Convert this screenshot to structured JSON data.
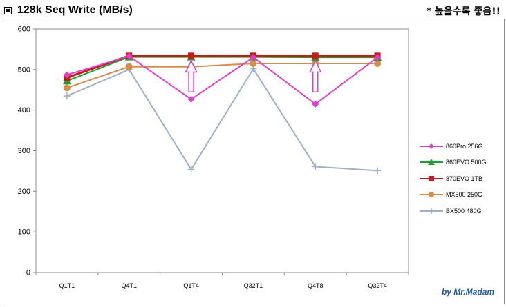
{
  "header": {
    "title": "128k Seq Write (MB/s)",
    "note": "* 높을수록 좋음!!"
  },
  "byline": "by Mr.Madam",
  "chart_data": {
    "type": "line",
    "categories": [
      "Q1T1",
      "Q4T1",
      "Q1T4",
      "Q32T1",
      "Q4T8",
      "Q32T4"
    ],
    "ylim": [
      0,
      600
    ],
    "yticks": [
      0,
      100,
      200,
      300,
      400,
      500,
      600
    ],
    "grid": false,
    "legend_position": "right",
    "series": [
      {
        "name": "860Pro 256G",
        "color": "#e040c8",
        "marker": "diamond",
        "values": [
          487,
          533,
          427,
          530,
          415,
          530
        ]
      },
      {
        "name": "860EVO 500G",
        "color": "#1e9e2e",
        "marker": "triangle",
        "values": [
          472,
          531,
          531,
          531,
          530,
          530
        ]
      },
      {
        "name": "870EVO 1TB",
        "color": "#c81818",
        "marker": "square",
        "values": [
          480,
          534,
          534,
          534,
          534,
          534
        ]
      },
      {
        "name": "MX500 250G",
        "color": "#d98c4a",
        "marker": "circle",
        "values": [
          455,
          507,
          507,
          515,
          515,
          515
        ]
      },
      {
        "name": "BX500 480G",
        "color": "#9fb0c8",
        "marker": "plus",
        "values": [
          435,
          500,
          254,
          502,
          261,
          251
        ]
      }
    ],
    "annotations": [
      {
        "type": "up-arrow",
        "category": "Q1T4",
        "color": "#e040c8"
      },
      {
        "type": "up-arrow",
        "category": "Q4T8",
        "color": "#e040c8"
      }
    ]
  }
}
